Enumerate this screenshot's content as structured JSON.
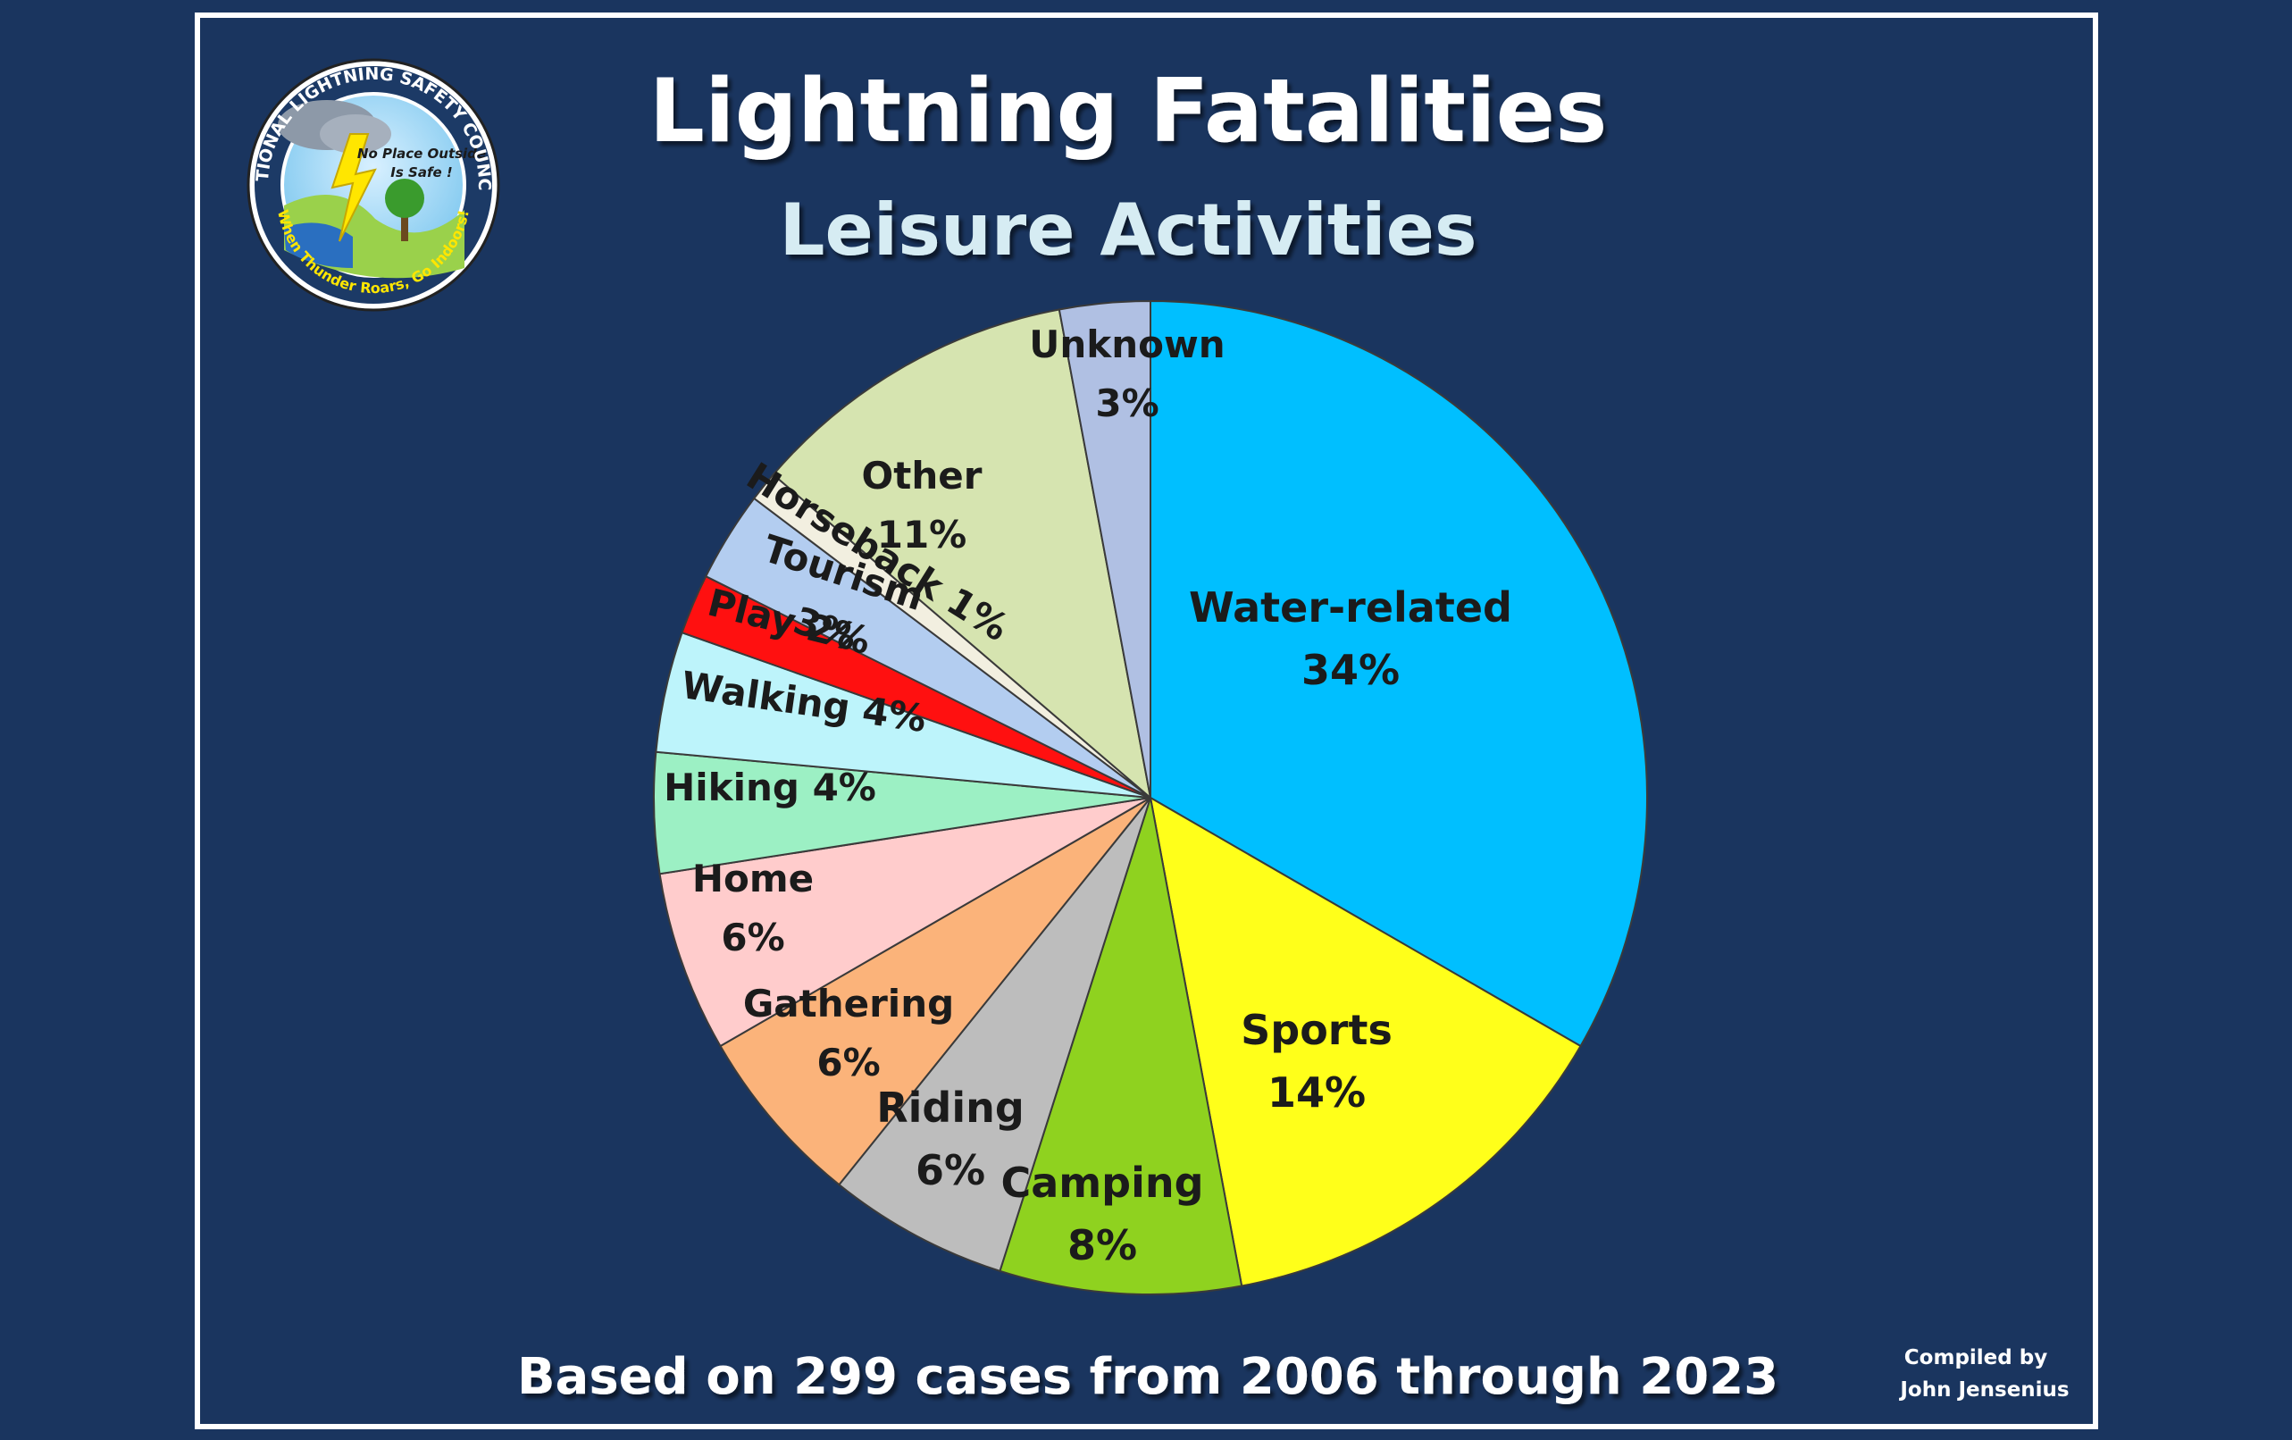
{
  "title": "Lightning Fatalities",
  "subtitle": "Leisure Activities",
  "footer": "Based on 299 cases from 2006 through 2023",
  "credit": [
    "Compiled by",
    "John Jensenius"
  ],
  "logo": {
    "ring_text": "NATIONAL LIGHTNING SAFETY COUNCIL",
    "bottom_text": "When Thunder Roars, Go Indoors!",
    "center_lines": [
      "No Place Outside",
      "Is Safe !"
    ]
  },
  "colors": {
    "background": "#1a355f",
    "title": "#ffffff",
    "subtitle": "#d6ecf3",
    "footer": "#ffffff"
  },
  "chart_data": {
    "type": "pie",
    "title": "Lightning Fatalities",
    "subtitle": "Leisure Activities",
    "slices": [
      {
        "label": "Water-related",
        "value": 34,
        "display": "34%",
        "color": "#00bfff"
      },
      {
        "label": "Sports",
        "value": 14,
        "display": "14%",
        "color": "#ffff1a"
      },
      {
        "label": "Camping",
        "value": 8,
        "display": "8%",
        "color": "#8fd21f"
      },
      {
        "label": "Riding",
        "value": 6,
        "display": "6%",
        "color": "#bdbdbd"
      },
      {
        "label": "Gathering",
        "value": 6,
        "display": "6%",
        "color": "#fbb37a"
      },
      {
        "label": "Home",
        "value": 6,
        "display": "6%",
        "color": "#ffcccc"
      },
      {
        "label": "Hiking",
        "value": 4,
        "display": "4%",
        "color": "#9cf0c4"
      },
      {
        "label": "Walking",
        "value": 4,
        "display": "4%",
        "color": "#bdf4fb"
      },
      {
        "label": "Play",
        "value": 2,
        "display": "2%",
        "color": "#ff1010"
      },
      {
        "label": "Tourism",
        "value": 3,
        "display": "3%",
        "color": "#b3cdf0"
      },
      {
        "label": "Horseback",
        "value": 1,
        "display": "1%",
        "color": "#f2efe0"
      },
      {
        "label": "Other",
        "value": 11,
        "display": "11%",
        "color": "#d6e4b0"
      },
      {
        "label": "Unknown",
        "value": 3,
        "display": "3%",
        "color": "#b0c0e3"
      }
    ]
  }
}
